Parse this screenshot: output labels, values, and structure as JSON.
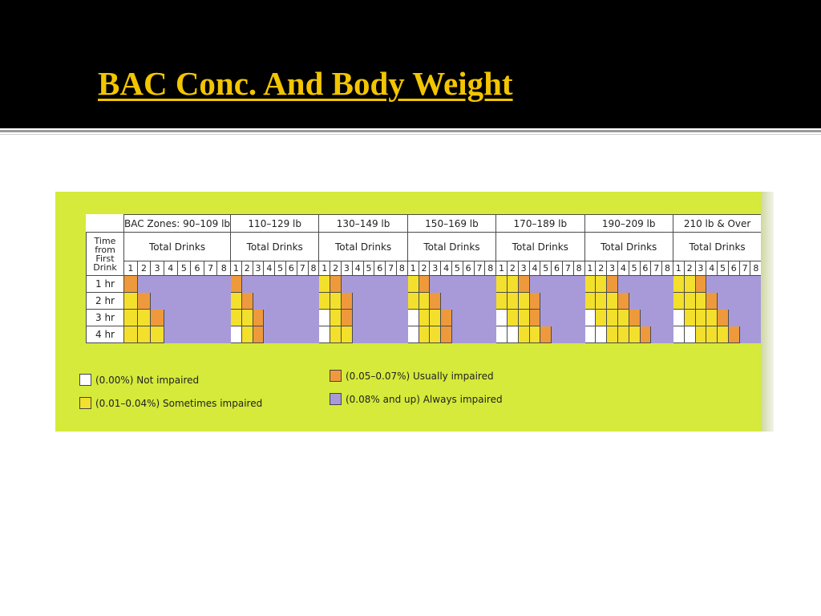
{
  "slide": {
    "title": "BAC Conc. And Body Weight"
  },
  "table": {
    "time_header": "Time from First Drink",
    "total_drinks_label": "Total Drinks",
    "drink_numbers": [
      "1",
      "2",
      "3",
      "4",
      "5",
      "6",
      "7",
      "8"
    ],
    "weight_groups": [
      {
        "label": "BAC Zones: 90–109 lb",
        "grid": [
          [
            2,
            3,
            3,
            3,
            3,
            3,
            3,
            3
          ],
          [
            1,
            2,
            3,
            3,
            3,
            3,
            3,
            3
          ],
          [
            1,
            1,
            2,
            3,
            3,
            3,
            3,
            3
          ],
          [
            1,
            1,
            1,
            3,
            3,
            3,
            3,
            3
          ]
        ]
      },
      {
        "label": "110–129 lb",
        "grid": [
          [
            2,
            3,
            3,
            3,
            3,
            3,
            3,
            3
          ],
          [
            1,
            2,
            3,
            3,
            3,
            3,
            3,
            3
          ],
          [
            1,
            1,
            2,
            3,
            3,
            3,
            3,
            3
          ],
          [
            0,
            1,
            2,
            3,
            3,
            3,
            3,
            3
          ]
        ]
      },
      {
        "label": "130–149 lb",
        "grid": [
          [
            1,
            2,
            3,
            3,
            3,
            3,
            3,
            3
          ],
          [
            1,
            1,
            2,
            3,
            3,
            3,
            3,
            3
          ],
          [
            0,
            1,
            2,
            3,
            3,
            3,
            3,
            3
          ],
          [
            0,
            1,
            1,
            3,
            3,
            3,
            3,
            3
          ]
        ]
      },
      {
        "label": "150–169 lb",
        "grid": [
          [
            1,
            2,
            3,
            3,
            3,
            3,
            3,
            3
          ],
          [
            1,
            1,
            2,
            3,
            3,
            3,
            3,
            3
          ],
          [
            0,
            1,
            1,
            2,
            3,
            3,
            3,
            3
          ],
          [
            0,
            1,
            1,
            2,
            3,
            3,
            3,
            3
          ]
        ]
      },
      {
        "label": "170–189 lb",
        "grid": [
          [
            1,
            1,
            2,
            3,
            3,
            3,
            3,
            3
          ],
          [
            1,
            1,
            1,
            2,
            3,
            3,
            3,
            3
          ],
          [
            0,
            1,
            1,
            2,
            3,
            3,
            3,
            3
          ],
          [
            0,
            0,
            1,
            1,
            2,
            3,
            3,
            3
          ]
        ]
      },
      {
        "label": "190–209 lb",
        "grid": [
          [
            1,
            1,
            2,
            3,
            3,
            3,
            3,
            3
          ],
          [
            1,
            1,
            1,
            2,
            3,
            3,
            3,
            3
          ],
          [
            0,
            1,
            1,
            1,
            2,
            3,
            3,
            3
          ],
          [
            0,
            0,
            1,
            1,
            1,
            2,
            3,
            3
          ]
        ]
      },
      {
        "label": "210 lb  &  Over",
        "grid": [
          [
            1,
            1,
            2,
            3,
            3,
            3,
            3,
            3
          ],
          [
            1,
            1,
            1,
            2,
            3,
            3,
            3,
            3
          ],
          [
            0,
            1,
            1,
            1,
            2,
            3,
            3,
            3
          ],
          [
            0,
            0,
            1,
            1,
            1,
            2,
            3,
            3
          ]
        ]
      }
    ],
    "rows": [
      "1 hr",
      "2 hr",
      "3 hr",
      "4 hr"
    ]
  },
  "zone_colors": [
    "#ffffff",
    "#f3e02c",
    "#ee9a3c",
    "#a89ad8"
  ],
  "legend": [
    {
      "label": "(0.00%) Not impaired",
      "color": "#ffffff"
    },
    {
      "label": "(0.01–0.04%) Sometimes impaired",
      "color": "#f3e02c"
    },
    {
      "label": "(0.05–0.07%) Usually impaired",
      "color": "#ee9a3c"
    },
    {
      "label": "(0.08% and up) Always impaired",
      "color": "#a89ad8"
    }
  ]
}
